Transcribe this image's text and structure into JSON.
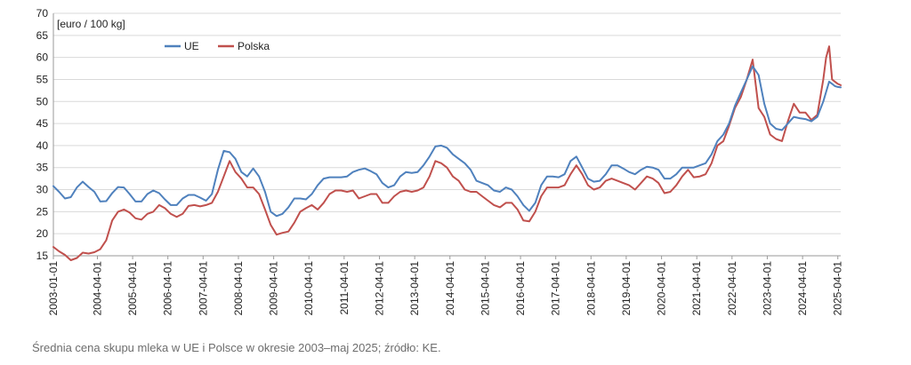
{
  "chart_data": {
    "type": "line",
    "unit_label": "[euro / 100 kg]",
    "ylim": [
      15,
      70
    ],
    "yticks": [
      15,
      20,
      25,
      30,
      35,
      40,
      45,
      50,
      55,
      60,
      65,
      70
    ],
    "xlim": [
      "2003-01-01",
      "2025-05-01"
    ],
    "xticks": [
      "2003-01-01",
      "2004-04-01",
      "2005-04-01",
      "2006-04-01",
      "2007-04-01",
      "2008-04-01",
      "2009-04-01",
      "2010-04-01",
      "2011-04-01",
      "2012-04-01",
      "2013-04-01",
      "2014-04-01",
      "2015-04-01",
      "2016-04-01",
      "2017-04-01",
      "2018-04-01",
      "2019-04-01",
      "2020-04-01",
      "2021-04-01",
      "2022-04-01",
      "2023-04-01",
      "2024-04-01",
      "2025-04-01"
    ],
    "grid": true,
    "legend_position": "top-left",
    "series": [
      {
        "name": "UE",
        "color": "#4f81bd",
        "points": [
          [
            "2003-01-01",
            30.8
          ],
          [
            "2003-03-01",
            29.5
          ],
          [
            "2003-05-01",
            28.0
          ],
          [
            "2003-07-01",
            28.3
          ],
          [
            "2003-09-01",
            30.5
          ],
          [
            "2003-11-01",
            31.8
          ],
          [
            "2004-01-01",
            30.6
          ],
          [
            "2004-03-01",
            29.5
          ],
          [
            "2004-05-01",
            27.3
          ],
          [
            "2004-07-01",
            27.4
          ],
          [
            "2004-09-01",
            29.2
          ],
          [
            "2004-11-01",
            30.6
          ],
          [
            "2005-01-01",
            30.5
          ],
          [
            "2005-03-01",
            29.0
          ],
          [
            "2005-05-01",
            27.3
          ],
          [
            "2005-07-01",
            27.3
          ],
          [
            "2005-09-01",
            29.0
          ],
          [
            "2005-11-01",
            29.8
          ],
          [
            "2006-01-01",
            29.2
          ],
          [
            "2006-03-01",
            27.8
          ],
          [
            "2006-05-01",
            26.5
          ],
          [
            "2006-07-01",
            26.5
          ],
          [
            "2006-09-01",
            28.0
          ],
          [
            "2006-11-01",
            28.8
          ],
          [
            "2007-01-01",
            28.8
          ],
          [
            "2007-03-01",
            28.2
          ],
          [
            "2007-05-01",
            27.5
          ],
          [
            "2007-07-01",
            29.0
          ],
          [
            "2007-09-01",
            34.5
          ],
          [
            "2007-11-01",
            38.8
          ],
          [
            "2008-01-01",
            38.5
          ],
          [
            "2008-03-01",
            37.0
          ],
          [
            "2008-05-01",
            34.0
          ],
          [
            "2008-07-01",
            33.0
          ],
          [
            "2008-09-01",
            34.8
          ],
          [
            "2008-11-01",
            33.0
          ],
          [
            "2009-01-01",
            29.5
          ],
          [
            "2009-03-01",
            25.0
          ],
          [
            "2009-05-01",
            24.0
          ],
          [
            "2009-07-01",
            24.5
          ],
          [
            "2009-09-01",
            26.0
          ],
          [
            "2009-11-01",
            28.0
          ],
          [
            "2010-01-01",
            28.0
          ],
          [
            "2010-03-01",
            27.8
          ],
          [
            "2010-05-01",
            29.0
          ],
          [
            "2010-07-01",
            31.0
          ],
          [
            "2010-09-01",
            32.5
          ],
          [
            "2010-11-01",
            32.8
          ],
          [
            "2011-01-01",
            32.8
          ],
          [
            "2011-03-01",
            32.8
          ],
          [
            "2011-05-01",
            33.0
          ],
          [
            "2011-07-01",
            34.0
          ],
          [
            "2011-09-01",
            34.5
          ],
          [
            "2011-11-01",
            34.8
          ],
          [
            "2012-01-01",
            34.2
          ],
          [
            "2012-03-01",
            33.5
          ],
          [
            "2012-05-01",
            31.5
          ],
          [
            "2012-07-01",
            30.5
          ],
          [
            "2012-09-01",
            31.0
          ],
          [
            "2012-11-01",
            33.0
          ],
          [
            "2013-01-01",
            34.0
          ],
          [
            "2013-03-01",
            33.8
          ],
          [
            "2013-05-01",
            34.0
          ],
          [
            "2013-07-01",
            35.5
          ],
          [
            "2013-09-01",
            37.5
          ],
          [
            "2013-11-01",
            39.8
          ],
          [
            "2014-01-01",
            40.0
          ],
          [
            "2014-03-01",
            39.5
          ],
          [
            "2014-05-01",
            38.0
          ],
          [
            "2014-07-01",
            37.0
          ],
          [
            "2014-09-01",
            36.0
          ],
          [
            "2014-11-01",
            34.5
          ],
          [
            "2015-01-01",
            32.0
          ],
          [
            "2015-03-01",
            31.5
          ],
          [
            "2015-05-01",
            31.0
          ],
          [
            "2015-07-01",
            29.8
          ],
          [
            "2015-09-01",
            29.5
          ],
          [
            "2015-11-01",
            30.5
          ],
          [
            "2016-01-01",
            30.0
          ],
          [
            "2016-03-01",
            28.5
          ],
          [
            "2016-05-01",
            26.5
          ],
          [
            "2016-07-01",
            25.2
          ],
          [
            "2016-09-01",
            27.0
          ],
          [
            "2016-11-01",
            31.0
          ],
          [
            "2017-01-01",
            33.0
          ],
          [
            "2017-03-01",
            33.0
          ],
          [
            "2017-05-01",
            32.8
          ],
          [
            "2017-07-01",
            33.5
          ],
          [
            "2017-09-01",
            36.5
          ],
          [
            "2017-11-01",
            37.5
          ],
          [
            "2018-01-01",
            35.0
          ],
          [
            "2018-03-01",
            32.5
          ],
          [
            "2018-05-01",
            31.8
          ],
          [
            "2018-07-01",
            32.0
          ],
          [
            "2018-09-01",
            33.5
          ],
          [
            "2018-11-01",
            35.5
          ],
          [
            "2019-01-01",
            35.5
          ],
          [
            "2019-03-01",
            34.8
          ],
          [
            "2019-05-01",
            34.0
          ],
          [
            "2019-07-01",
            33.5
          ],
          [
            "2019-09-01",
            34.5
          ],
          [
            "2019-11-01",
            35.2
          ],
          [
            "2020-01-01",
            35.0
          ],
          [
            "2020-03-01",
            34.5
          ],
          [
            "2020-05-01",
            32.5
          ],
          [
            "2020-07-01",
            32.5
          ],
          [
            "2020-09-01",
            33.5
          ],
          [
            "2020-11-01",
            35.0
          ],
          [
            "2021-01-01",
            35.0
          ],
          [
            "2021-03-01",
            35.0
          ],
          [
            "2021-05-01",
            35.5
          ],
          [
            "2021-07-01",
            36.0
          ],
          [
            "2021-09-01",
            38.0
          ],
          [
            "2021-11-01",
            41.0
          ],
          [
            "2022-01-01",
            42.5
          ],
          [
            "2022-03-01",
            45.0
          ],
          [
            "2022-05-01",
            49.0
          ],
          [
            "2022-07-01",
            52.0
          ],
          [
            "2022-09-01",
            55.0
          ],
          [
            "2022-11-01",
            58.0
          ],
          [
            "2023-01-01",
            56.0
          ],
          [
            "2023-03-01",
            49.5
          ],
          [
            "2023-05-01",
            45.0
          ],
          [
            "2023-07-01",
            43.8
          ],
          [
            "2023-09-01",
            43.5
          ],
          [
            "2023-11-01",
            45.0
          ],
          [
            "2024-01-01",
            46.5
          ],
          [
            "2024-03-01",
            46.2
          ],
          [
            "2024-05-01",
            46.0
          ],
          [
            "2024-07-01",
            45.5
          ],
          [
            "2024-09-01",
            46.5
          ],
          [
            "2024-11-01",
            50.0
          ],
          [
            "2025-01-01",
            54.5
          ],
          [
            "2025-02-01",
            54.0
          ],
          [
            "2025-03-01",
            53.5
          ],
          [
            "2025-04-01",
            53.3
          ],
          [
            "2025-05-01",
            53.2
          ]
        ]
      },
      {
        "name": "Polska",
        "color": "#c0504d",
        "points": [
          [
            "2003-01-01",
            17.0
          ],
          [
            "2003-03-01",
            16.0
          ],
          [
            "2003-05-01",
            15.2
          ],
          [
            "2003-07-01",
            14.0
          ],
          [
            "2003-09-01",
            14.5
          ],
          [
            "2003-11-01",
            15.7
          ],
          [
            "2004-01-01",
            15.5
          ],
          [
            "2004-03-01",
            15.8
          ],
          [
            "2004-05-01",
            16.5
          ],
          [
            "2004-07-01",
            18.5
          ],
          [
            "2004-09-01",
            23.0
          ],
          [
            "2004-11-01",
            25.0
          ],
          [
            "2005-01-01",
            25.5
          ],
          [
            "2005-03-01",
            24.8
          ],
          [
            "2005-05-01",
            23.5
          ],
          [
            "2005-07-01",
            23.2
          ],
          [
            "2005-09-01",
            24.5
          ],
          [
            "2005-11-01",
            25.0
          ],
          [
            "2006-01-01",
            26.5
          ],
          [
            "2006-03-01",
            25.8
          ],
          [
            "2006-05-01",
            24.5
          ],
          [
            "2006-07-01",
            23.8
          ],
          [
            "2006-09-01",
            24.5
          ],
          [
            "2006-11-01",
            26.3
          ],
          [
            "2007-01-01",
            26.5
          ],
          [
            "2007-03-01",
            26.2
          ],
          [
            "2007-05-01",
            26.5
          ],
          [
            "2007-07-01",
            27.0
          ],
          [
            "2007-09-01",
            29.5
          ],
          [
            "2007-11-01",
            33.0
          ],
          [
            "2008-01-01",
            36.5
          ],
          [
            "2008-03-01",
            34.0
          ],
          [
            "2008-05-01",
            32.5
          ],
          [
            "2008-07-01",
            30.5
          ],
          [
            "2008-09-01",
            30.5
          ],
          [
            "2008-11-01",
            29.0
          ],
          [
            "2009-01-01",
            25.5
          ],
          [
            "2009-03-01",
            22.0
          ],
          [
            "2009-05-01",
            19.8
          ],
          [
            "2009-07-01",
            20.2
          ],
          [
            "2009-09-01",
            20.5
          ],
          [
            "2009-11-01",
            22.5
          ],
          [
            "2010-01-01",
            25.0
          ],
          [
            "2010-03-01",
            25.8
          ],
          [
            "2010-05-01",
            26.5
          ],
          [
            "2010-07-01",
            25.5
          ],
          [
            "2010-09-01",
            27.0
          ],
          [
            "2010-11-01",
            29.0
          ],
          [
            "2011-01-01",
            29.8
          ],
          [
            "2011-03-01",
            29.8
          ],
          [
            "2011-05-01",
            29.5
          ],
          [
            "2011-07-01",
            29.8
          ],
          [
            "2011-09-01",
            28.0
          ],
          [
            "2011-11-01",
            28.5
          ],
          [
            "2012-01-01",
            29.0
          ],
          [
            "2012-03-01",
            29.0
          ],
          [
            "2012-05-01",
            27.0
          ],
          [
            "2012-07-01",
            27.0
          ],
          [
            "2012-09-01",
            28.5
          ],
          [
            "2012-11-01",
            29.5
          ],
          [
            "2013-01-01",
            29.8
          ],
          [
            "2013-03-01",
            29.5
          ],
          [
            "2013-05-01",
            29.8
          ],
          [
            "2013-07-01",
            30.5
          ],
          [
            "2013-09-01",
            33.0
          ],
          [
            "2013-11-01",
            36.5
          ],
          [
            "2014-01-01",
            36.0
          ],
          [
            "2014-03-01",
            35.0
          ],
          [
            "2014-05-01",
            33.0
          ],
          [
            "2014-07-01",
            32.0
          ],
          [
            "2014-09-01",
            30.0
          ],
          [
            "2014-11-01",
            29.5
          ],
          [
            "2015-01-01",
            29.5
          ],
          [
            "2015-03-01",
            28.5
          ],
          [
            "2015-05-01",
            27.5
          ],
          [
            "2015-07-01",
            26.5
          ],
          [
            "2015-09-01",
            26.0
          ],
          [
            "2015-11-01",
            27.0
          ],
          [
            "2016-01-01",
            27.0
          ],
          [
            "2016-03-01",
            25.5
          ],
          [
            "2016-05-01",
            23.0
          ],
          [
            "2016-07-01",
            22.8
          ],
          [
            "2016-09-01",
            25.0
          ],
          [
            "2016-11-01",
            28.5
          ],
          [
            "2017-01-01",
            30.5
          ],
          [
            "2017-03-01",
            30.5
          ],
          [
            "2017-05-01",
            30.5
          ],
          [
            "2017-07-01",
            31.0
          ],
          [
            "2017-09-01",
            33.5
          ],
          [
            "2017-11-01",
            35.5
          ],
          [
            "2018-01-01",
            33.5
          ],
          [
            "2018-03-01",
            31.0
          ],
          [
            "2018-05-01",
            30.0
          ],
          [
            "2018-07-01",
            30.5
          ],
          [
            "2018-09-01",
            32.0
          ],
          [
            "2018-11-01",
            32.5
          ],
          [
            "2019-01-01",
            32.0
          ],
          [
            "2019-03-01",
            31.5
          ],
          [
            "2019-05-01",
            31.0
          ],
          [
            "2019-07-01",
            30.0
          ],
          [
            "2019-09-01",
            31.5
          ],
          [
            "2019-11-01",
            33.0
          ],
          [
            "2020-01-01",
            32.5
          ],
          [
            "2020-03-01",
            31.5
          ],
          [
            "2020-05-01",
            29.2
          ],
          [
            "2020-07-01",
            29.5
          ],
          [
            "2020-09-01",
            31.0
          ],
          [
            "2020-11-01",
            33.0
          ],
          [
            "2021-01-01",
            34.5
          ],
          [
            "2021-03-01",
            32.8
          ],
          [
            "2021-05-01",
            33.0
          ],
          [
            "2021-07-01",
            33.5
          ],
          [
            "2021-09-01",
            36.0
          ],
          [
            "2021-11-01",
            40.0
          ],
          [
            "2022-01-01",
            41.0
          ],
          [
            "2022-03-01",
            44.5
          ],
          [
            "2022-05-01",
            48.5
          ],
          [
            "2022-07-01",
            51.0
          ],
          [
            "2022-09-01",
            55.0
          ],
          [
            "2022-11-01",
            59.5
          ],
          [
            "2023-01-01",
            48.5
          ],
          [
            "2023-03-01",
            46.5
          ],
          [
            "2023-05-01",
            42.5
          ],
          [
            "2023-07-01",
            41.5
          ],
          [
            "2023-09-01",
            41.0
          ],
          [
            "2023-11-01",
            45.5
          ],
          [
            "2024-01-01",
            49.5
          ],
          [
            "2024-03-01",
            47.5
          ],
          [
            "2024-05-01",
            47.5
          ],
          [
            "2024-07-01",
            45.8
          ],
          [
            "2024-09-01",
            47.0
          ],
          [
            "2024-11-01",
            55.0
          ],
          [
            "2024-12-01",
            60.0
          ],
          [
            "2025-01-01",
            62.5
          ],
          [
            "2025-02-01",
            55.0
          ],
          [
            "2025-03-01",
            54.5
          ],
          [
            "2025-04-01",
            54.0
          ],
          [
            "2025-05-01",
            53.7
          ]
        ]
      }
    ]
  },
  "caption": "Średnia cena skupu mleka w UE i Polsce w okresie 2003–maj 2025; źródło: KE."
}
